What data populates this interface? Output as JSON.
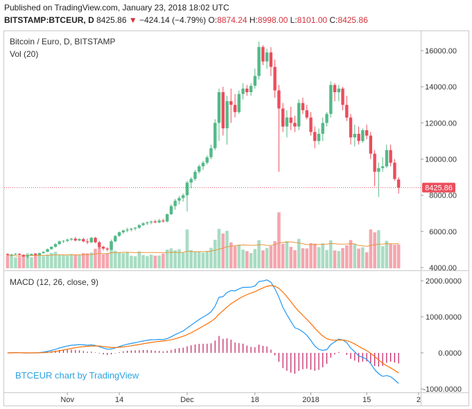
{
  "header": {
    "published": "Published on TradingView.com, January 23, 2018 18:02 UTC",
    "symbol": "BITSTAMP:BTCEUR, D",
    "last": "8425.86",
    "change_arrow": "▼",
    "change": "−424.14 (−4.79%)",
    "o_label": "O:",
    "o_value": "8874.24",
    "h_label": "H:",
    "h_value": "8998.00",
    "l_label": "L:",
    "l_value": "8101.00",
    "c_label": "C:",
    "c_value": "8425.86"
  },
  "price_panel": {
    "title": "Bitcoin / Euro, D, BITSTAMP",
    "vol_label": "Vol (20)",
    "y_ticks": [
      "16000.00",
      "14000.00",
      "12000.00",
      "10000.00",
      "8000.00",
      "6000.00",
      "4000.00"
    ],
    "last_price_label": "8425.86"
  },
  "macd_panel": {
    "title": "MACD (12, 26, close, 9)",
    "y_ticks": [
      "2000.0000",
      "1000.0000",
      "0.0000",
      "-1000.0000"
    ],
    "watermark": "BTCEUR chart by TradingView"
  },
  "x_axis": {
    "ticks": [
      "Nov",
      "14",
      "Dec",
      "18",
      "2018",
      "15",
      "2"
    ]
  },
  "colors": {
    "up": "#53b987",
    "down": "#eb4d5c",
    "vol_up": "#a9dcc3",
    "vol_down": "#f5a6ae",
    "vol_ma": "#e8953b",
    "macd": "#2196f3",
    "signal": "#ff6d00",
    "hist": "#c2185b"
  },
  "chart_data": {
    "type": "candlestick",
    "title": "Bitcoin / Euro, D, BITSTAMP",
    "x_range": [
      "2017-10-17",
      "2018-01-23"
    ],
    "candles_ohlc": [
      [
        4750,
        4790,
        4660,
        4700
      ],
      [
        4700,
        4760,
        4620,
        4720
      ],
      [
        4720,
        4810,
        4690,
        4760
      ],
      [
        4760,
        4800,
        4680,
        4700
      ],
      [
        4700,
        4730,
        4580,
        4620
      ],
      [
        4620,
        4700,
        4500,
        4680
      ],
      [
        4680,
        4780,
        4650,
        4750
      ],
      [
        4750,
        4800,
        4660,
        4700
      ],
      [
        4700,
        4820,
        4690,
        4800
      ],
      [
        4800,
        4900,
        4780,
        4870
      ],
      [
        4870,
        5050,
        4850,
        5020
      ],
      [
        5020,
        5180,
        5000,
        5150
      ],
      [
        5150,
        5350,
        5100,
        5300
      ],
      [
        5300,
        5500,
        5250,
        5450
      ],
      [
        5450,
        5520,
        5350,
        5480
      ],
      [
        5480,
        5600,
        5400,
        5550
      ],
      [
        5550,
        5650,
        5480,
        5600
      ],
      [
        5600,
        5700,
        5450,
        5500
      ],
      [
        5500,
        5620,
        5460,
        5580
      ],
      [
        5580,
        5650,
        5400,
        5450
      ],
      [
        5450,
        5600,
        5300,
        5400
      ],
      [
        5400,
        5700,
        5350,
        5650
      ],
      [
        5650,
        5700,
        5350,
        5400
      ],
      [
        5400,
        5480,
        5050,
        5150
      ],
      [
        5150,
        5200,
        4950,
        5050
      ],
      [
        5050,
        5120,
        4900,
        5000
      ],
      [
        5000,
        5550,
        4950,
        5450
      ],
      [
        5450,
        5800,
        5400,
        5750
      ],
      [
        5750,
        6000,
        5700,
        5950
      ],
      [
        5950,
        6100,
        5850,
        6050
      ],
      [
        6050,
        6200,
        5950,
        6100
      ],
      [
        6100,
        6200,
        6000,
        6150
      ],
      [
        6150,
        6250,
        6050,
        6200
      ],
      [
        6200,
        6400,
        6150,
        6350
      ],
      [
        6350,
        6500,
        6300,
        6450
      ],
      [
        6450,
        6550,
        6350,
        6500
      ],
      [
        6500,
        6600,
        6400,
        6550
      ],
      [
        6550,
        6650,
        6450,
        6500
      ],
      [
        6500,
        6700,
        6450,
        6600
      ],
      [
        6600,
        6700,
        6500,
        6550
      ],
      [
        6550,
        7000,
        6500,
        6950
      ],
      [
        6950,
        7500,
        6900,
        7400
      ],
      [
        7400,
        7800,
        7200,
        7700
      ],
      [
        7700,
        7950,
        7500,
        7850
      ],
      [
        7850,
        8100,
        7650,
        8000
      ],
      [
        8000,
        8800,
        7100,
        8700
      ],
      [
        8700,
        9000,
        8400,
        8900
      ],
      [
        8900,
        9400,
        8800,
        9300
      ],
      [
        9300,
        9700,
        9200,
        9600
      ],
      [
        9600,
        9900,
        9400,
        9800
      ],
      [
        9800,
        10200,
        9700,
        10100
      ],
      [
        10100,
        10800,
        10000,
        10600
      ],
      [
        10600,
        12200,
        10500,
        12000
      ],
      [
        12000,
        13900,
        11000,
        13700
      ],
      [
        13700,
        14000,
        11300,
        11700
      ],
      [
        11700,
        13500,
        10800,
        13200
      ],
      [
        13200,
        13900,
        12000,
        13000
      ],
      [
        13000,
        13600,
        12300,
        12600
      ],
      [
        12600,
        13800,
        12500,
        13600
      ],
      [
        13600,
        14200,
        13300,
        13900
      ],
      [
        13900,
        14100,
        13500,
        13700
      ],
      [
        13700,
        14200,
        13500,
        14050
      ],
      [
        14050,
        15000,
        13900,
        14600
      ],
      [
        14600,
        16500,
        14400,
        16200
      ],
      [
        16200,
        16300,
        15200,
        15400
      ],
      [
        15400,
        16100,
        15000,
        15900
      ],
      [
        15900,
        16200,
        14600,
        15100
      ],
      [
        15100,
        15500,
        13400,
        13800
      ],
      [
        13800,
        14100,
        9300,
        12800
      ],
      [
        12800,
        13100,
        11500,
        11800
      ],
      [
        11800,
        12700,
        11200,
        12300
      ],
      [
        12300,
        12900,
        11600,
        12000
      ],
      [
        12000,
        12400,
        11500,
        11800
      ],
      [
        11800,
        13300,
        11600,
        13100
      ],
      [
        13100,
        13400,
        12500,
        12700
      ],
      [
        12700,
        13000,
        12200,
        12300
      ],
      [
        12300,
        12600,
        11300,
        11500
      ],
      [
        11500,
        11800,
        10600,
        11000
      ],
      [
        11000,
        11700,
        10800,
        11400
      ],
      [
        11400,
        12300,
        11000,
        12000
      ],
      [
        12000,
        12600,
        11800,
        12500
      ],
      [
        12500,
        14300,
        12300,
        14100
      ],
      [
        14100,
        14200,
        13200,
        13700
      ],
      [
        13700,
        14100,
        13200,
        13900
      ],
      [
        13900,
        14000,
        12700,
        13000
      ],
      [
        13000,
        13500,
        12100,
        12300
      ],
      [
        12300,
        12500,
        10800,
        11200
      ],
      [
        11200,
        11900,
        10700,
        11400
      ],
      [
        11400,
        11800,
        10800,
        11000
      ],
      [
        11000,
        11700,
        10900,
        11600
      ],
      [
        11600,
        11900,
        11100,
        11300
      ],
      [
        11300,
        11500,
        10000,
        10300
      ],
      [
        10300,
        10500,
        8500,
        9300
      ],
      [
        9300,
        9800,
        7900,
        9500
      ],
      [
        9500,
        10100,
        9300,
        9600
      ],
      [
        9600,
        10800,
        9500,
        10500
      ],
      [
        10500,
        10800,
        9600,
        9800
      ],
      [
        9800,
        10000,
        8800,
        8900
      ],
      [
        8874.24,
        8998,
        8101,
        8425.86
      ]
    ],
    "volume_range": [
      0,
      1
    ],
    "macd_range": [
      -1000,
      2000
    ],
    "last_close": 8425.86
  }
}
